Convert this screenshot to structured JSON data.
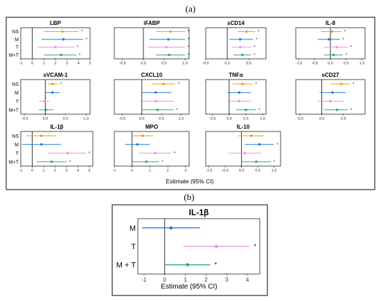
{
  "figure": {
    "label_a": "(a)",
    "label_b": "(b)",
    "xlabel_a": "Estimate (95% CI)",
    "xlabel_b": "Estimate (95% CI)"
  },
  "colors": {
    "NS": "#E69F00",
    "M": "#1F78D1",
    "T": "#F08BE0",
    "M+T": "#2EA866",
    "star": "#000000",
    "zero_line": "#000000",
    "frame": "#000000"
  },
  "chart_data": [
    {
      "type": "forest",
      "title": "LBP",
      "xlim": [
        -1,
        5
      ],
      "ticks": [
        -1,
        0,
        1,
        2,
        3,
        4,
        5
      ],
      "categories": [
        "NS",
        "M",
        "T",
        "M+T"
      ],
      "series": [
        {
          "group": "NS",
          "estimate": 2.6,
          "lower": 1.0,
          "upper": 4.0,
          "significant": true
        },
        {
          "group": "M",
          "estimate": 2.7,
          "lower": 0.8,
          "upper": 4.4,
          "significant": true
        },
        {
          "group": "T",
          "estimate": 2.0,
          "lower": 0.5,
          "upper": 3.6,
          "significant": true
        },
        {
          "group": "M+T",
          "estimate": 2.5,
          "lower": 1.0,
          "upper": 3.8,
          "significant": true
        }
      ]
    },
    {
      "type": "forest",
      "title": "iFABP",
      "xlim": [
        -0.7,
        1.1
      ],
      "ticks": [
        -0.5,
        0.0,
        0.5,
        1.0
      ],
      "categories": [
        "NS",
        "M",
        "T",
        "M+T"
      ],
      "series": [
        {
          "group": "NS",
          "estimate": 0.65,
          "lower": 0.3,
          "upper": 1.0,
          "significant": true
        },
        {
          "group": "M",
          "estimate": 0.6,
          "lower": 0.15,
          "upper": 1.0,
          "significant": true
        },
        {
          "group": "T",
          "estimate": 0.55,
          "lower": 0.1,
          "upper": 1.0,
          "significant": true
        },
        {
          "group": "M+T",
          "estimate": 0.62,
          "lower": 0.3,
          "upper": 1.0,
          "significant": true
        }
      ]
    },
    {
      "type": "forest",
      "title": "sCD14",
      "xlim": [
        -0.5,
        0.9
      ],
      "ticks": [
        -0.5,
        0.0,
        0.5
      ],
      "categories": [
        "NS",
        "M",
        "T",
        "M+T"
      ],
      "series": [
        {
          "group": "NS",
          "estimate": 0.45,
          "lower": 0.25,
          "upper": 0.65,
          "significant": true
        },
        {
          "group": "M",
          "estimate": 0.3,
          "lower": 0.05,
          "upper": 0.6,
          "significant": true
        },
        {
          "group": "T",
          "estimate": 0.3,
          "lower": 0.1,
          "upper": 0.55,
          "significant": true
        },
        {
          "group": "M+T",
          "estimate": 0.35,
          "lower": 0.15,
          "upper": 0.55,
          "significant": true
        }
      ]
    },
    {
      "type": "forest",
      "title": "IL-8",
      "xlim": [
        -1.1,
        1.1
      ],
      "ticks": [
        -1.0,
        -0.5,
        0.0,
        0.5,
        1.0
      ],
      "categories": [
        "NS",
        "M",
        "T",
        "M+T"
      ],
      "series": [
        {
          "group": "NS",
          "estimate": 0.05,
          "lower": -0.3,
          "upper": 0.35,
          "significant": true
        },
        {
          "group": "M",
          "estimate": -0.05,
          "lower": -0.4,
          "upper": 0.3,
          "significant": true
        },
        {
          "group": "T",
          "estimate": 0.2,
          "lower": -0.2,
          "upper": 0.55,
          "significant": true
        },
        {
          "group": "M+T",
          "estimate": 0.1,
          "lower": -0.2,
          "upper": 0.4,
          "significant": true
        }
      ]
    },
    {
      "type": "forest",
      "title": "sVCAM-1",
      "xlim": [
        -0.6,
        1.1
      ],
      "ticks": [
        -0.5,
        0.0,
        0.5,
        1.0
      ],
      "categories": [
        "NS",
        "M",
        "T",
        "M+T"
      ],
      "series": [
        {
          "group": "NS",
          "estimate": 0.18,
          "lower": 0.06,
          "upper": 0.3,
          "significant": true
        },
        {
          "group": "M",
          "estimate": 0.18,
          "lower": 0.02,
          "upper": 0.35,
          "significant": false
        },
        {
          "group": "T",
          "estimate": -0.02,
          "lower": -0.15,
          "upper": 0.1,
          "significant": false
        },
        {
          "group": "M+T",
          "estimate": 0.02,
          "lower": -0.15,
          "upper": 0.2,
          "significant": false
        }
      ]
    },
    {
      "type": "forest",
      "title": "CXCL10",
      "xlim": [
        -0.7,
        1.2
      ],
      "ticks": [
        -0.5,
        0.0,
        0.5,
        1.0
      ],
      "categories": [
        "NS",
        "M",
        "T",
        "M+T"
      ],
      "series": [
        {
          "group": "NS",
          "estimate": 0.55,
          "lower": 0.25,
          "upper": 0.85,
          "significant": true
        },
        {
          "group": "M",
          "estimate": 0.35,
          "lower": 0.0,
          "upper": 0.75,
          "significant": false
        },
        {
          "group": "T",
          "estimate": 0.35,
          "lower": -0.05,
          "upper": 0.8,
          "significant": false
        },
        {
          "group": "M+T",
          "estimate": 0.4,
          "lower": 0.0,
          "upper": 0.8,
          "significant": true
        }
      ]
    },
    {
      "type": "forest",
      "title": "TNFα",
      "xlim": [
        -0.7,
        1.1
      ],
      "ticks": [
        -0.5,
        0.0,
        0.5,
        1.0
      ],
      "categories": [
        "NS",
        "M",
        "T",
        "M+T"
      ],
      "series": [
        {
          "group": "NS",
          "estimate": 0.4,
          "lower": 0.1,
          "upper": 0.7,
          "significant": true
        },
        {
          "group": "M",
          "estimate": 0.3,
          "lower": -0.05,
          "upper": 0.65,
          "significant": false
        },
        {
          "group": "T",
          "estimate": 0.3,
          "lower": -0.05,
          "upper": 0.65,
          "significant": false
        },
        {
          "group": "M+T",
          "estimate": 0.5,
          "lower": 0.2,
          "upper": 0.8,
          "significant": true
        }
      ]
    },
    {
      "type": "forest",
      "title": "sCD27",
      "xlim": [
        -0.6,
        1.0
      ],
      "ticks": [
        -0.5,
        0.0,
        0.5
      ],
      "categories": [
        "NS",
        "M",
        "T",
        "M+T"
      ],
      "series": [
        {
          "group": "NS",
          "estimate": 0.45,
          "lower": 0.2,
          "upper": 0.65,
          "significant": true
        },
        {
          "group": "M",
          "estimate": 0.25,
          "lower": -0.05,
          "upper": 0.55,
          "significant": false
        },
        {
          "group": "T",
          "estimate": 0.2,
          "lower": -0.1,
          "upper": 0.5,
          "significant": false
        },
        {
          "group": "M+T",
          "estimate": 0.35,
          "lower": 0.05,
          "upper": 0.6,
          "significant": true
        }
      ]
    },
    {
      "type": "forest",
      "title": "IL-1β",
      "xlim": [
        -1,
        5.3
      ],
      "ticks": [
        -1,
        0,
        1,
        2,
        3,
        4,
        5
      ],
      "categories": [
        "NS",
        "M",
        "T",
        "M+T"
      ],
      "series": [
        {
          "group": "NS",
          "estimate": 0.8,
          "lower": -0.5,
          "upper": 2.1,
          "significant": false
        },
        {
          "group": "M",
          "estimate": 0.8,
          "lower": -0.9,
          "upper": 2.5,
          "significant": false
        },
        {
          "group": "T",
          "estimate": 3.1,
          "lower": 1.4,
          "upper": 4.7,
          "significant": true
        },
        {
          "group": "M+T",
          "estimate": 1.7,
          "lower": 0.4,
          "upper": 3.0,
          "significant": true
        }
      ]
    },
    {
      "type": "forest",
      "title": "MPO",
      "xlim": [
        -1,
        3.2
      ],
      "ticks": [
        -1,
        0,
        1,
        2,
        3
      ],
      "categories": [
        "NS",
        "M",
        "T",
        "M+T"
      ],
      "series": [
        {
          "group": "NS",
          "estimate": 0.6,
          "lower": 0.0,
          "upper": 1.2,
          "significant": false
        },
        {
          "group": "M",
          "estimate": 0.3,
          "lower": -0.4,
          "upper": 1.0,
          "significant": false
        },
        {
          "group": "T",
          "estimate": 1.3,
          "lower": 0.4,
          "upper": 2.2,
          "significant": true
        },
        {
          "group": "M+T",
          "estimate": 0.8,
          "lower": 0.0,
          "upper": 1.5,
          "significant": true
        }
      ]
    },
    {
      "type": "forest",
      "title": "IL-10",
      "xlim": [
        -1.1,
        1.2
      ],
      "ticks": [
        -1.0,
        -0.5,
        0.0,
        0.5,
        1.0
      ],
      "categories": [
        "NS",
        "M",
        "T",
        "M+T"
      ],
      "series": [
        {
          "group": "NS",
          "estimate": 0.3,
          "lower": -0.1,
          "upper": 0.7,
          "significant": false
        },
        {
          "group": "M",
          "estimate": 0.55,
          "lower": 0.1,
          "upper": 1.0,
          "significant": true
        },
        {
          "group": "T",
          "estimate": 0.1,
          "lower": -0.4,
          "upper": 0.6,
          "significant": false
        },
        {
          "group": "M+T",
          "estimate": 0.45,
          "lower": 0.0,
          "upper": 0.9,
          "significant": true
        }
      ]
    },
    {
      "type": "forest",
      "title": "IL-1β",
      "xlim": [
        -1.3,
        4.6
      ],
      "ticks": [
        -1,
        0,
        1,
        2,
        3,
        4
      ],
      "categories": [
        "M",
        "T",
        "M + T"
      ],
      "series": [
        {
          "group": "M",
          "estimate": 0.3,
          "lower": -1.1,
          "upper": 1.7,
          "significant": false
        },
        {
          "group": "T",
          "estimate": 2.5,
          "lower": 0.9,
          "upper": 4.1,
          "significant": true
        },
        {
          "group": "M+T",
          "estimate": 1.1,
          "lower": 0.0,
          "upper": 2.2,
          "significant": true
        }
      ]
    }
  ]
}
